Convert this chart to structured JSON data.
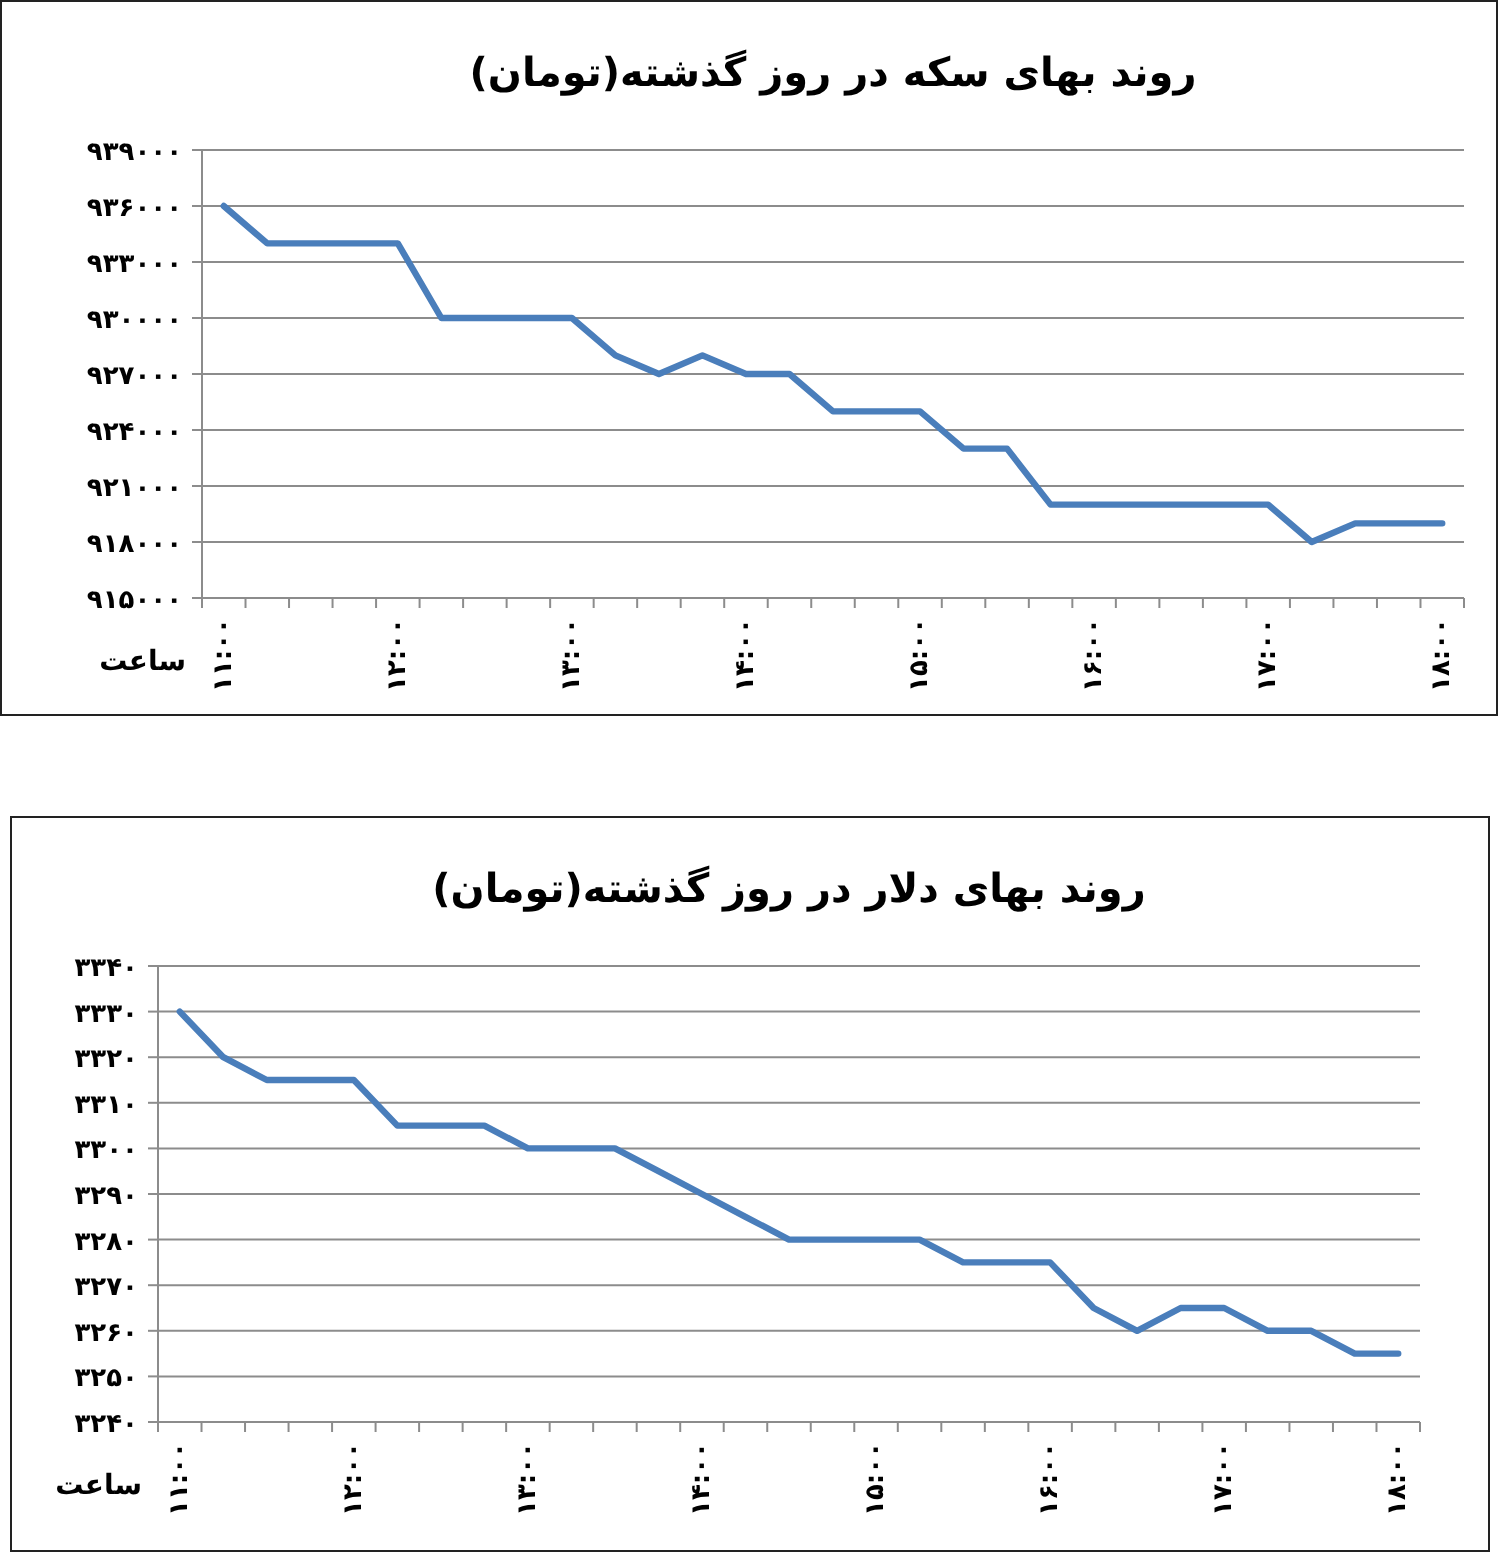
{
  "chart_data": [
    {
      "type": "line",
      "title": "روند بهای سکه در روز گذشته(تومان)",
      "xlabel": "ساعت",
      "categories": [
        "۱۱:۰۰",
        null,
        null,
        null,
        "۱۲:۰۰",
        null,
        null,
        null,
        "۱۳:۰۰",
        null,
        null,
        null,
        "۱۴:۰۰",
        null,
        null,
        null,
        "۱۵:۰۰",
        null,
        null,
        null,
        "۱۶:۰۰",
        null,
        null,
        null,
        "۱۷:۰۰",
        null,
        null,
        null,
        "۱۸:۰۰"
      ],
      "series": [
        {
          "color": "#4a7ebb",
          "values": [
            936000,
            934000,
            934000,
            934000,
            934000,
            930000,
            930000,
            930000,
            930000,
            928000,
            927000,
            928000,
            927000,
            927000,
            925000,
            925000,
            925000,
            923000,
            923000,
            920000,
            920000,
            920000,
            920000,
            920000,
            920000,
            918000,
            919000,
            919000,
            919000
          ]
        }
      ],
      "ylim": [
        915000,
        939000
      ],
      "yticks": [
        {
          "value": 915000,
          "label": "۹۱۵۰۰۰"
        },
        {
          "value": 918000,
          "label": "۹۱۸۰۰۰"
        },
        {
          "value": 921000,
          "label": "۹۲۱۰۰۰"
        },
        {
          "value": 924000,
          "label": "۹۲۴۰۰۰"
        },
        {
          "value": 927000,
          "label": "۹۲۷۰۰۰"
        },
        {
          "value": 930000,
          "label": "۹۳۰۰۰۰"
        },
        {
          "value": 933000,
          "label": "۹۳۳۰۰۰"
        },
        {
          "value": 936000,
          "label": "۹۳۶۰۰۰"
        },
        {
          "value": 939000,
          "label": "۹۳۹۰۰۰"
        }
      ],
      "grid": "y",
      "marker": "none",
      "line_style": "solid"
    },
    {
      "type": "line",
      "title": "روند بهای دلار در روز گذشته(تومان)",
      "xlabel": "ساعت",
      "categories": [
        "۱۱:۰۰",
        null,
        null,
        null,
        "۱۲:۰۰",
        null,
        null,
        null,
        "۱۳:۰۰",
        null,
        null,
        null,
        "۱۴:۰۰",
        null,
        null,
        null,
        "۱۵:۰۰",
        null,
        null,
        null,
        "۱۶:۰۰",
        null,
        null,
        null,
        "۱۷:۰۰",
        null,
        null,
        null,
        "۱۸:۰۰"
      ],
      "series": [
        {
          "color": "#4a7ebb",
          "values": [
            3330,
            3320,
            3315,
            3315,
            3315,
            3305,
            3305,
            3305,
            3300,
            3300,
            3300,
            3295,
            3290,
            3285,
            3280,
            3280,
            3280,
            3280,
            3275,
            3275,
            3275,
            3265,
            3260,
            3265,
            3265,
            3260,
            3260,
            3255,
            3255
          ]
        }
      ],
      "ylim": [
        3240,
        3340
      ],
      "yticks": [
        {
          "value": 3240,
          "label": "۳۲۴۰"
        },
        {
          "value": 3250,
          "label": "۳۲۵۰"
        },
        {
          "value": 3260,
          "label": "۳۲۶۰"
        },
        {
          "value": 3270,
          "label": "۳۲۷۰"
        },
        {
          "value": 3280,
          "label": "۳۲۸۰"
        },
        {
          "value": 3290,
          "label": "۳۲۹۰"
        },
        {
          "value": 3300,
          "label": "۳۳۰۰"
        },
        {
          "value": 3310,
          "label": "۳۳۱۰"
        },
        {
          "value": 3320,
          "label": "۳۳۲۰"
        },
        {
          "value": 3330,
          "label": "۳۳۳۰"
        },
        {
          "value": 3340,
          "label": "۳۳۴۰"
        }
      ],
      "grid": "y",
      "marker": "none",
      "line_style": "solid"
    }
  ]
}
